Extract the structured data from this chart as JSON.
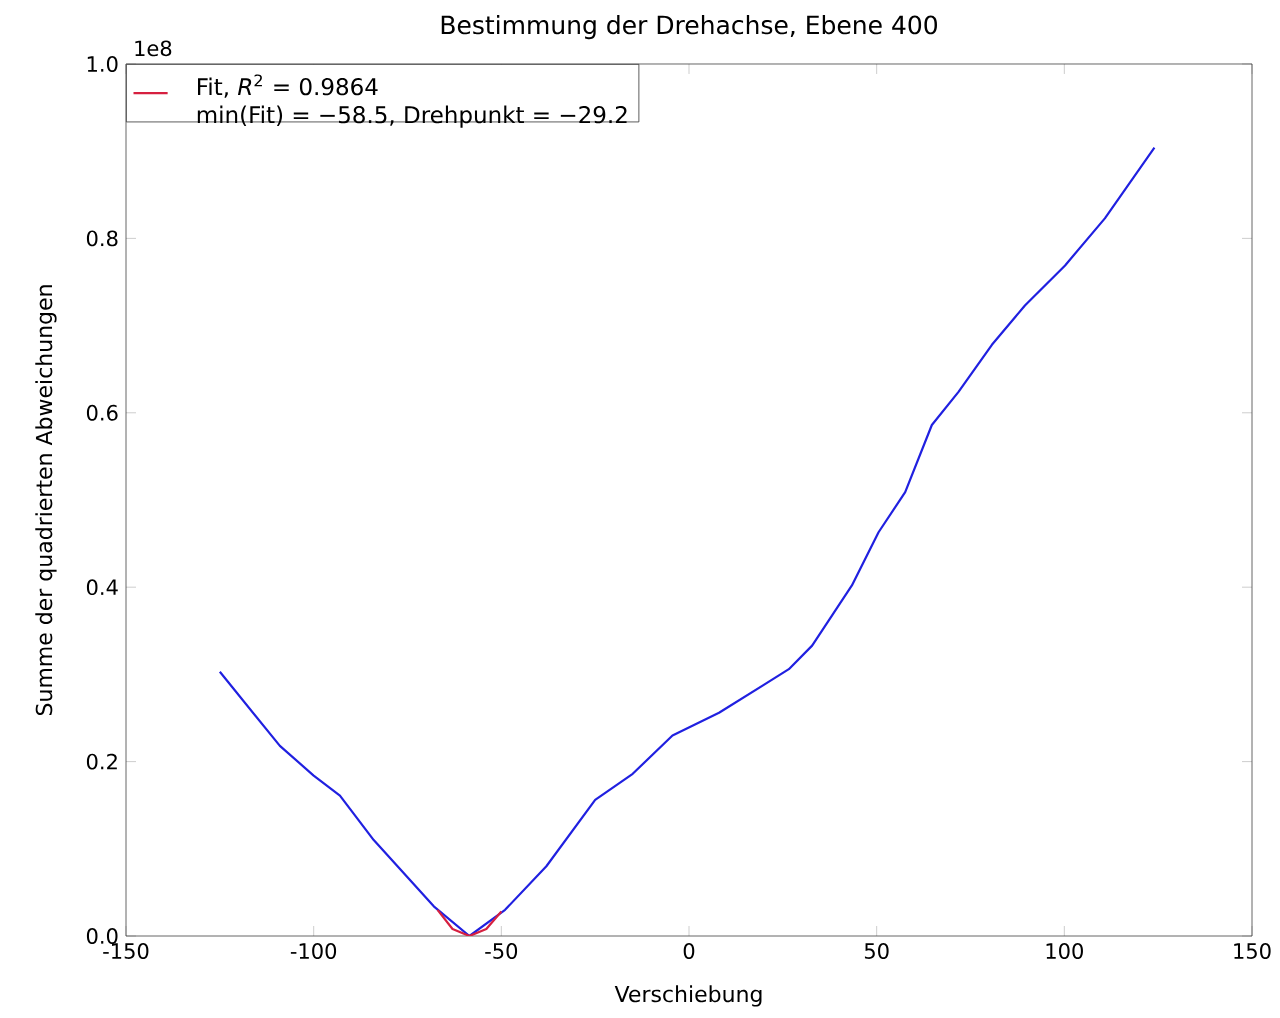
{
  "chart_data": {
    "type": "line",
    "title": "Bestimmung der Drehachse, Ebene 400",
    "xlabel": "Verschiebung",
    "ylabel": "Summe der quadrierten Abweichungen",
    "annotations": [
      "1e8",
      "min(Fit) = −58.5, Drehpunkt = −29.2"
    ],
    "series": [
      {
        "color": "#2020e0",
        "x": [
          -125,
          -109,
          -100,
          -93,
          -84,
          -68,
          -58.5,
          -49,
          -38,
          -25,
          -15,
          -4.4,
          8,
          26.6,
          32.8,
          43.4,
          50.5,
          57.6,
          64.7,
          71.8,
          80.7,
          89.5,
          100.2,
          110.8,
          124
        ],
        "values": [
          0.303,
          0.218,
          0.184,
          0.161,
          0.11,
          0.034,
          0.0,
          0.03,
          0.08,
          0.156,
          0.186,
          0.23,
          0.256,
          0.306,
          0.333,
          0.402,
          0.463,
          0.509,
          0.586,
          0.624,
          0.678,
          0.723,
          0.769,
          0.823,
          0.904
        ]
      },
      {
        "name": "Fit, *R*$^{2}$ = 0.9864",
        "color": "#d62040",
        "x": [
          -67,
          -63,
          -58.5,
          -54,
          -50
        ],
        "values": [
          0.03,
          0.008,
          0.0,
          0.008,
          0.028
        ]
      }
    ],
    "xlim": [
      -150,
      150
    ],
    "ylim": [
      0,
      1
    ],
    "xticks": [
      -150,
      -100,
      -50,
      0,
      50,
      100,
      150
    ],
    "yticks": [
      {
        "value": 0,
        "label": "0.0"
      },
      {
        "value": 0.2,
        "label": "0.2"
      },
      {
        "value": 0.4,
        "label": "0.4"
      },
      {
        "value": 0.6,
        "label": "0.6"
      },
      {
        "value": 0.8,
        "label": "0.8"
      },
      {
        "value": 1,
        "label": "1.0"
      }
    ],
    "legend": "top left",
    "marker": "none",
    "line_style": "solid"
  }
}
